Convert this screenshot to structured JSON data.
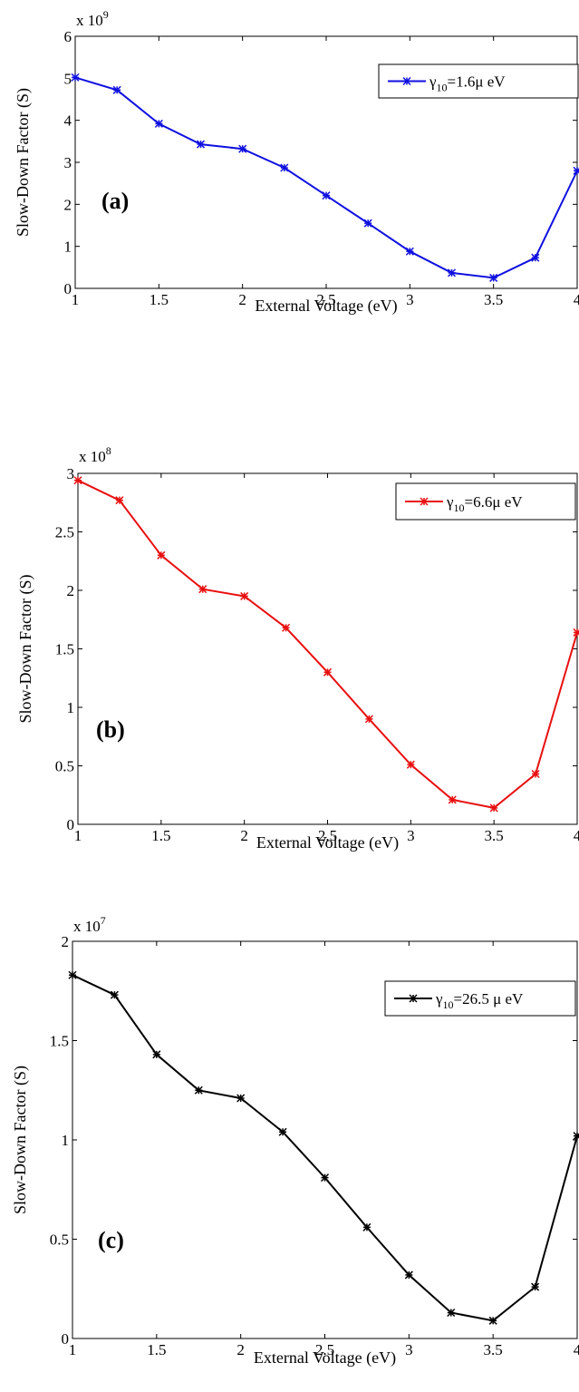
{
  "chart_data": [
    {
      "type": "line",
      "panel_label": "(a)",
      "exponent_label": {
        "base": "x 10",
        "power": "9"
      },
      "xlabel": "External Voltage (eV)",
      "ylabel": "Slow-Down Factor (S)",
      "xlim": [
        1,
        4
      ],
      "ylim": [
        0,
        6
      ],
      "xticks": [
        "1",
        "1.5",
        "2",
        "2.5",
        "3",
        "3.5",
        "4"
      ],
      "yticks": [
        "0",
        "1",
        "2",
        "3",
        "4",
        "5",
        "6"
      ],
      "grid": false,
      "legend_position": "top-right",
      "legend": {
        "prefix": "γ",
        "sub": "10",
        "suffix": "=1.6μ eV"
      },
      "color": "#1010e0",
      "x": [
        1,
        1.25,
        1.5,
        1.75,
        2,
        2.25,
        2.5,
        2.75,
        3,
        3.25,
        3.5,
        3.75,
        4
      ],
      "y": [
        5.02,
        4.72,
        3.92,
        3.43,
        3.32,
        2.87,
        2.21,
        1.55,
        0.88,
        0.37,
        0.25,
        0.73,
        2.8
      ]
    },
    {
      "type": "line",
      "panel_label": "(b)",
      "exponent_label": {
        "base": "x 10",
        "power": "8"
      },
      "xlabel": "External Voltage (eV)",
      "ylabel": "Slow-Down Factor (S)",
      "xlim": [
        1,
        4
      ],
      "ylim": [
        0,
        3
      ],
      "xticks": [
        "1",
        "1.5",
        "2",
        "2.5",
        "3",
        "3.5",
        "4"
      ],
      "yticks": [
        "0",
        "0.5",
        "1",
        "1.5",
        "2",
        "2.5",
        "3"
      ],
      "grid": false,
      "legend_position": "top-right",
      "legend": {
        "prefix": "γ",
        "sub": "10",
        "suffix": "=6.6μ eV"
      },
      "color": "#e81010",
      "x": [
        1,
        1.25,
        1.5,
        1.75,
        2,
        2.25,
        2.5,
        2.75,
        3,
        3.25,
        3.5,
        3.75,
        4
      ],
      "y": [
        2.94,
        2.77,
        2.3,
        2.01,
        1.95,
        1.68,
        1.3,
        0.9,
        0.51,
        0.21,
        0.14,
        0.43,
        1.64
      ]
    },
    {
      "type": "line",
      "panel_label": "(c)",
      "exponent_label": {
        "base": "x 10",
        "power": "7"
      },
      "xlabel": "External Voltage (eV)",
      "ylabel": "Slow-Down Factor (S)",
      "xlim": [
        1,
        4
      ],
      "ylim": [
        0,
        2
      ],
      "xticks": [
        "1",
        "1.5",
        "2",
        "2.5",
        "3",
        "3.5",
        "4"
      ],
      "yticks": [
        "0",
        "0.5",
        "1",
        "1.5",
        "2"
      ],
      "grid": false,
      "legend_position": "top-right",
      "legend": {
        "prefix": "γ",
        "sub": "10",
        "suffix": "=26.5 μ eV"
      },
      "color": "#000000",
      "x": [
        1,
        1.25,
        1.5,
        1.75,
        2,
        2.25,
        2.5,
        2.75,
        3,
        3.25,
        3.5,
        3.75,
        4
      ],
      "y": [
        1.83,
        1.73,
        1.43,
        1.25,
        1.21,
        1.04,
        0.81,
        0.56,
        0.32,
        0.13,
        0.09,
        0.26,
        1.02
      ]
    }
  ]
}
